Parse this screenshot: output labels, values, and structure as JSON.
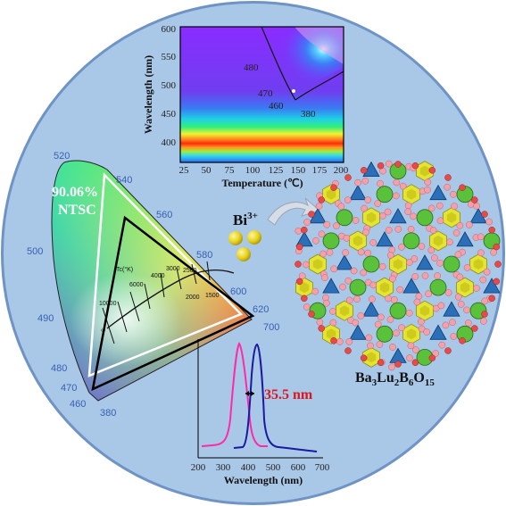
{
  "background_disc_color": "#a9c7e7",
  "contour_map": {
    "y_label": "Wavelength (nm)",
    "x_label": "Temperature (℃)",
    "y_ticks": [
      "600",
      "550",
      "500",
      "450",
      "400"
    ],
    "x_ticks": [
      "25",
      "50",
      "75",
      "100",
      "125",
      "150",
      "175",
      "200"
    ],
    "contour_labels": [
      "480",
      "470",
      "460",
      "380"
    ]
  },
  "cie": {
    "ntsc_percent": "90.06%",
    "ntsc_label": "NTSC",
    "wavelength_ticks": [
      "520",
      "540",
      "560",
      "580",
      "600",
      "620",
      "700",
      "500",
      "490",
      "480",
      "470",
      "460",
      "380"
    ],
    "planckian_label": "Tc(°K)",
    "cct_ticks": [
      "10000",
      "6000",
      "4000",
      "3000",
      "2500",
      "2000",
      "1500"
    ],
    "infinity": "∞"
  },
  "dopant": {
    "label": "Bi",
    "charge": "3+"
  },
  "crystal": {
    "formula_parts": [
      "Ba",
      "3",
      "Lu",
      "2",
      "B",
      "6",
      "O",
      "15"
    ]
  },
  "spectra": {
    "shift_label": "35.5 nm",
    "x_label": "Wavelength (nm)",
    "x_ticks": [
      "200",
      "300",
      "400",
      "500",
      "600",
      "700"
    ]
  }
}
